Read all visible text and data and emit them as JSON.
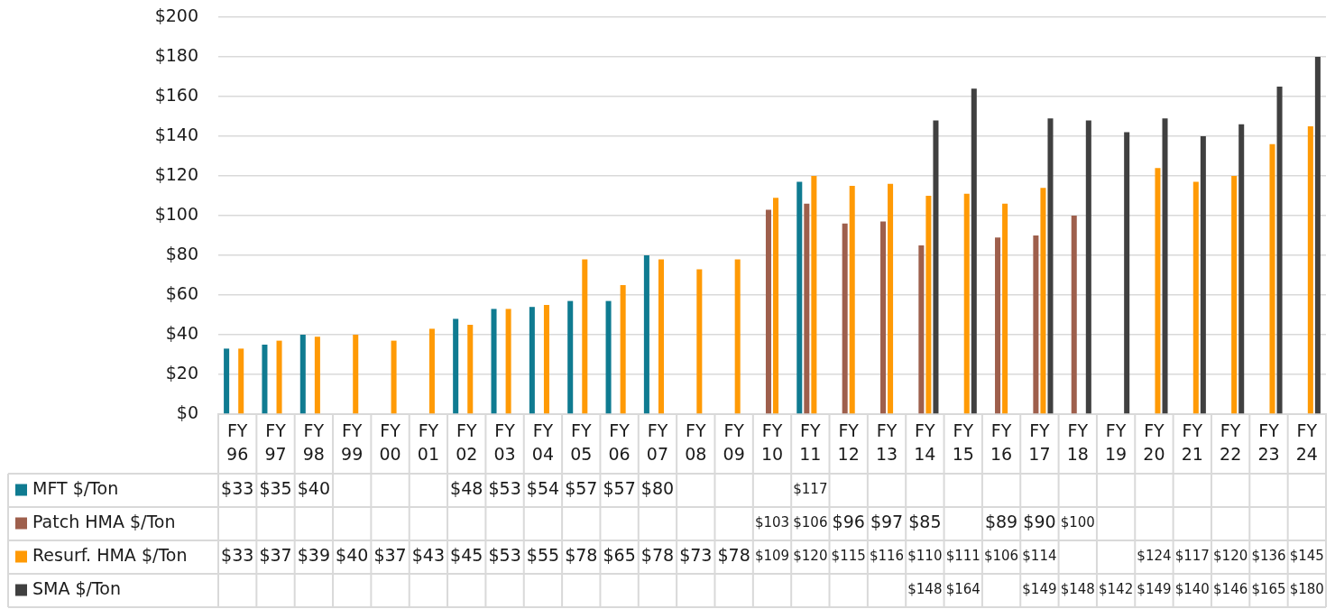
{
  "chart_data": {
    "type": "bar",
    "categories": [
      "FY 96",
      "FY 97",
      "FY 98",
      "FY 99",
      "FY 00",
      "FY 01",
      "FY 02",
      "FY 03",
      "FY 04",
      "FY 05",
      "FY 06",
      "FY 07",
      "FY 08",
      "FY 09",
      "FY 10",
      "FY 11",
      "FY 12",
      "FY 13",
      "FY 14",
      "FY 15",
      "FY 16",
      "FY 17",
      "FY 18",
      "FY 19",
      "FY 20",
      "FY 21",
      "FY 22",
      "FY 23",
      "FY 24"
    ],
    "series": [
      {
        "name": "MFT $/Ton",
        "color": "#0f7b91",
        "values": [
          33,
          35,
          40,
          null,
          null,
          null,
          48,
          53,
          54,
          57,
          57,
          80,
          null,
          null,
          null,
          117,
          null,
          null,
          null,
          null,
          null,
          null,
          null,
          null,
          null,
          null,
          null,
          null,
          null
        ],
        "value_labels": [
          "$33",
          "$35",
          "$40",
          null,
          null,
          null,
          "$48",
          "$53",
          "$54",
          "$57",
          "$57",
          "$80",
          null,
          null,
          null,
          "$117",
          null,
          null,
          null,
          null,
          null,
          null,
          null,
          null,
          null,
          null,
          null,
          null,
          null
        ]
      },
      {
        "name": "Patch HMA $/Ton",
        "color": "#9e5f4c",
        "values": [
          null,
          null,
          null,
          null,
          null,
          null,
          null,
          null,
          null,
          null,
          null,
          null,
          null,
          null,
          103,
          106,
          96,
          97,
          85,
          null,
          89,
          90,
          100,
          null,
          null,
          null,
          null,
          null,
          null
        ],
        "value_labels": [
          null,
          null,
          null,
          null,
          null,
          null,
          null,
          null,
          null,
          null,
          null,
          null,
          null,
          null,
          "$103",
          "$106",
          "$96",
          "$97",
          "$85",
          null,
          "$89",
          "$90",
          "$100",
          null,
          null,
          null,
          null,
          null,
          null
        ]
      },
      {
        "name": "Resurf. HMA $/Ton",
        "color": "#ff9a05",
        "values": [
          33,
          37,
          39,
          40,
          37,
          43,
          45,
          53,
          55,
          78,
          65,
          78,
          73,
          78,
          109,
          120,
          115,
          116,
          110,
          111,
          106,
          114,
          null,
          null,
          124,
          117,
          120,
          136,
          145
        ],
        "value_labels": [
          "$33",
          "$37",
          "$39",
          "$40",
          "$37",
          "$43",
          "$45",
          "$53",
          "$55",
          "$78",
          "$65",
          "$78",
          "$73",
          "$78",
          "$109",
          "$120",
          "$115",
          "$116",
          "$110",
          "$111",
          "$106",
          "$114",
          null,
          null,
          "$124",
          "$117",
          "$120",
          "$136",
          "$145"
        ]
      },
      {
        "name": "SMA $/Ton",
        "color": "#404040",
        "values": [
          null,
          null,
          null,
          null,
          null,
          null,
          null,
          null,
          null,
          null,
          null,
          null,
          null,
          null,
          null,
          null,
          null,
          null,
          148,
          164,
          null,
          149,
          148,
          142,
          149,
          140,
          146,
          165,
          180
        ],
        "value_labels": [
          null,
          null,
          null,
          null,
          null,
          null,
          null,
          null,
          null,
          null,
          null,
          null,
          null,
          null,
          null,
          null,
          null,
          null,
          "$148",
          "$164",
          null,
          "$149",
          "$148",
          "$142",
          "$149",
          "$140",
          "$146",
          "$165",
          "$180"
        ]
      }
    ],
    "ylim": [
      0,
      200
    ],
    "yticks": [
      {
        "value": 0,
        "label": "$0"
      },
      {
        "value": 20,
        "label": "$20"
      },
      {
        "value": 40,
        "label": "$40"
      },
      {
        "value": 60,
        "label": "$60"
      },
      {
        "value": 80,
        "label": "$80"
      },
      {
        "value": 100,
        "label": "$100"
      },
      {
        "value": 120,
        "label": "$120"
      },
      {
        "value": 140,
        "label": "$140"
      },
      {
        "value": 160,
        "label": "$160"
      },
      {
        "value": 180,
        "label": "$180"
      },
      {
        "value": 200,
        "label": "$200"
      }
    ],
    "grid": "y",
    "legend": "bottom"
  }
}
